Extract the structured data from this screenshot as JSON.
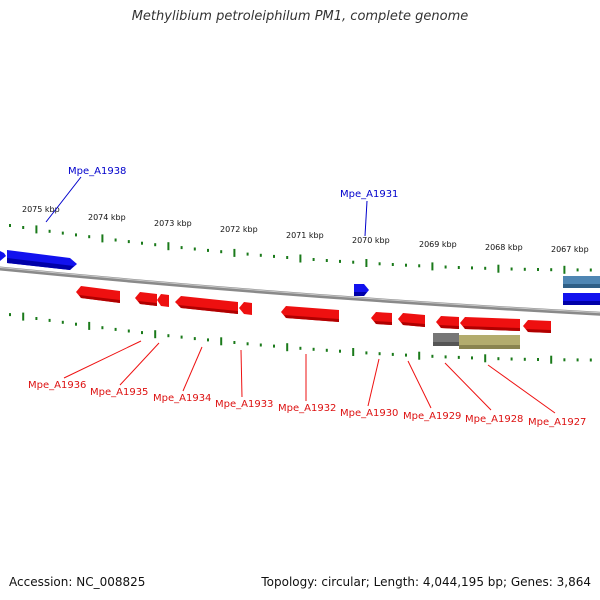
{
  "title": "Methylibium petroleiphilum PM1, complete genome",
  "footer": {
    "accession": "Accession: NC_008825",
    "summary": "Topology: circular; Length: 4,044,195 bp; Genes: 3,864"
  },
  "scale": {
    "tick_labels": [
      "2075 kbp",
      "2074 kbp",
      "2073 kbp",
      "2072 kbp",
      "2071 kbp",
      "2070 kbp",
      "2069 kbp",
      "2068 kbp",
      "2067 kbp"
    ]
  },
  "colors": {
    "forward": "#0000ee",
    "reverse": "#ee0000",
    "backbone": "#888888",
    "ticks": "#1a7a1a",
    "rna_grey": "#777777",
    "rna_olive": "#b3ac6e",
    "rna_steel": "#4f86b3"
  },
  "genes": {
    "forward_labels": [
      "Mpe_A1938",
      "Mpe_A1931"
    ],
    "reverse_labels": [
      "Mpe_A1936",
      "Mpe_A1935",
      "Mpe_A1934",
      "Mpe_A1933",
      "Mpe_A1932",
      "Mpe_A1930",
      "Mpe_A1929",
      "Mpe_A1928",
      "Mpe_A1927"
    ]
  }
}
